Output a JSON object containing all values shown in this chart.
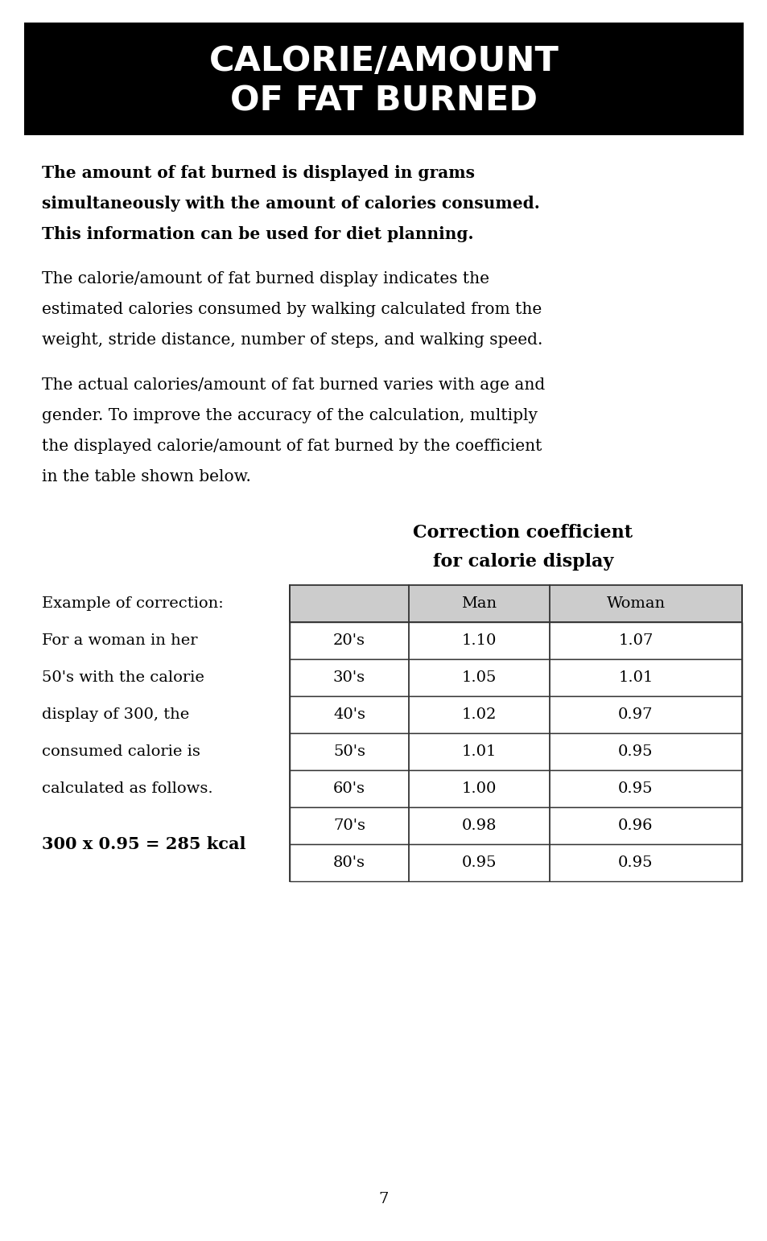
{
  "title_line1": "CALORIE/AMOUNT",
  "title_line2": "OF FAT BURNED",
  "title_bg": "#000000",
  "title_fg": "#ffffff",
  "bold_lines": [
    "The amount of fat burned is displayed in grams",
    "simultaneously with the amount of calories consumed.",
    "This information can be used for diet planning."
  ],
  "para1_lines": [
    "The calorie/amount of fat burned display indicates the",
    "estimated calories consumed by walking calculated from the",
    "weight, stride distance, number of steps, and walking speed."
  ],
  "para2_lines": [
    "The actual calories/amount of fat burned varies with age and",
    "gender. To improve the accuracy of the calculation, multiply",
    "the displayed calorie/amount of fat burned by the coefficient",
    "in the table shown below."
  ],
  "table_title_line1": "Correction coefficient",
  "table_title_line2": "for calorie display",
  "example_label": "Example of correction:",
  "example_text_lines": [
    "For a woman in her",
    "50's with the calorie",
    "display of 300, the",
    "consumed calorie is",
    "calculated as follows."
  ],
  "example_formula": "300 x 0.95 = 285 kcal",
  "table_header": [
    "",
    "Man",
    "Woman"
  ],
  "table_rows": [
    [
      "20's",
      "1.10",
      "1.07"
    ],
    [
      "30's",
      "1.05",
      "1.01"
    ],
    [
      "40's",
      "1.02",
      "0.97"
    ],
    [
      "50's",
      "1.01",
      "0.95"
    ],
    [
      "60's",
      "1.00",
      "0.95"
    ],
    [
      "70's",
      "0.98",
      "0.96"
    ],
    [
      "80's",
      "0.95",
      "0.95"
    ]
  ],
  "page_number": "7",
  "bg_color": "#ffffff",
  "text_color": "#000000",
  "table_header_bg": "#cccccc",
  "table_row_bg": "#ffffff"
}
